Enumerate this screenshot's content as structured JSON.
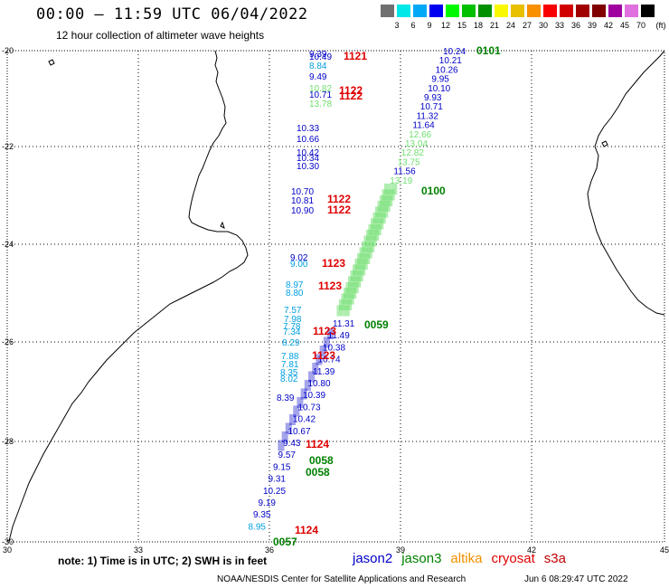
{
  "header": {
    "title": "00:00 — 11:59 UTC 06/04/2022",
    "subtitle": "12 hour collection of altimeter wave heights"
  },
  "legend": {
    "unit": "(ft)",
    "bins": [
      {
        "label": "",
        "color": "#707070"
      },
      {
        "label": "3",
        "color": "#00e8e8"
      },
      {
        "label": "6",
        "color": "#00a8f8"
      },
      {
        "label": "9",
        "color": "#0000f0"
      },
      {
        "label": "12",
        "color": "#00f800"
      },
      {
        "label": "15",
        "color": "#00c000"
      },
      {
        "label": "18",
        "color": "#009000"
      },
      {
        "label": "21",
        "color": "#f8f800"
      },
      {
        "label": "24",
        "color": "#e8c000"
      },
      {
        "label": "27",
        "color": "#f89000"
      },
      {
        "label": "30",
        "color": "#f80000"
      },
      {
        "label": "33",
        "color": "#d00000"
      },
      {
        "label": "36",
        "color": "#a00000"
      },
      {
        "label": "39",
        "color": "#800000"
      },
      {
        "label": "42",
        "color": "#a000a0"
      },
      {
        "label": "45",
        "color": "#e070e0"
      },
      {
        "label": "70",
        "color": "#000000"
      }
    ]
  },
  "axes": {
    "lon_ticks": [
      "30",
      "33",
      "36",
      "39",
      "42",
      "45"
    ],
    "lat_ticks": [
      "-20",
      "-22",
      "-24",
      "-26",
      "-28",
      "-30"
    ]
  },
  "colors": {
    "jason2": "#0000c8",
    "jason3": "#008000",
    "altika": "#f09000",
    "cryosat": "#e00000",
    "s3a": "#c00000",
    "light_green": "#70e070",
    "light_blue": "#00a0e0"
  },
  "observations": {
    "right_track": [
      {
        "v": "10.24",
        "c": "jason2"
      },
      {
        "v": "10.21",
        "c": "jason2"
      },
      {
        "v": "10.26",
        "c": "jason2"
      },
      {
        "v": "9.95",
        "c": "jason2"
      },
      {
        "v": "10.10",
        "c": "jason2"
      },
      {
        "v": "9.93",
        "c": "jason2"
      },
      {
        "v": "10.71",
        "c": "jason2"
      },
      {
        "v": "11.32",
        "c": "jason2"
      },
      {
        "v": "11.64",
        "c": "jason2"
      },
      {
        "v": "12.66",
        "c": "light_green"
      },
      {
        "v": "13.04",
        "c": "light_green"
      },
      {
        "v": "12.82",
        "c": "light_green"
      },
      {
        "v": "13.75",
        "c": "light_green"
      },
      {
        "v": "11.56",
        "c": "jason2"
      },
      {
        "v": "13.19",
        "c": "light_green"
      }
    ],
    "left_track_upper": [
      {
        "v": "9.39",
        "c": "jason2"
      },
      {
        "v": "10.49",
        "c": "jason2"
      },
      {
        "v": "8.84",
        "c": "light_blue"
      },
      {
        "v": "9.49",
        "c": "jason2"
      },
      {
        "v": "10.82",
        "c": "light_green"
      },
      {
        "v": "10.71",
        "c": "jason2"
      },
      {
        "v": "13.78",
        "c": "light_green"
      },
      {
        "v": "10.33",
        "c": "jason2"
      },
      {
        "v": "10.66",
        "c": "jason2"
      },
      {
        "v": "10.42",
        "c": "jason2"
      },
      {
        "v": "10.34",
        "c": "jason2"
      },
      {
        "v": "10.30",
        "c": "jason2"
      },
      {
        "v": "10.70",
        "c": "jason2"
      },
      {
        "v": "10.81",
        "c": "jason2"
      },
      {
        "v": "10.90",
        "c": "jason2"
      }
    ],
    "left_track_mid": [
      {
        "v": "9.02",
        "c": "jason2"
      },
      {
        "v": "9.00",
        "c": "light_blue"
      },
      {
        "v": "8.97",
        "c": "light_blue"
      },
      {
        "v": "8.80",
        "c": "light_blue"
      },
      {
        "v": "7.57",
        "c": "light_blue"
      },
      {
        "v": "7.98",
        "c": "light_blue"
      },
      {
        "v": "7.78",
        "c": "light_blue"
      },
      {
        "v": "7.34",
        "c": "light_blue"
      },
      {
        "v": "8.29",
        "c": "light_blue"
      },
      {
        "v": "7.88",
        "c": "light_blue"
      },
      {
        "v": "7.81",
        "c": "light_blue"
      },
      {
        "v": "8.35",
        "c": "light_blue"
      },
      {
        "v": "8.02",
        "c": "light_blue"
      },
      {
        "v": "8.39",
        "c": "jason2"
      }
    ],
    "lower_track": [
      {
        "v": "11.31",
        "c": "jason2"
      },
      {
        "v": "11.49",
        "c": "jason2"
      },
      {
        "v": "10.38",
        "c": "jason2"
      },
      {
        "v": "10.74",
        "c": "jason2"
      },
      {
        "v": "11.39",
        "c": "jason2"
      },
      {
        "v": "10.80",
        "c": "jason2"
      },
      {
        "v": "10.39",
        "c": "jason2"
      },
      {
        "v": "10.73",
        "c": "jason2"
      },
      {
        "v": "10.42",
        "c": "jason2"
      },
      {
        "v": "10.67",
        "c": "jason2"
      },
      {
        "v": "9.43",
        "c": "jason2"
      },
      {
        "v": "9.57",
        "c": "jason2"
      },
      {
        "v": "9.15",
        "c": "jason2"
      },
      {
        "v": "9.31",
        "c": "jason2"
      },
      {
        "v": "10.25",
        "c": "jason2"
      },
      {
        "v": "9.19",
        "c": "jason2"
      },
      {
        "v": "9.35",
        "c": "jason2"
      },
      {
        "v": "8.95",
        "c": "light_blue"
      }
    ],
    "pass_labels": [
      {
        "t": "0101",
        "c": "jason3"
      },
      {
        "t": "1121",
        "c": "cryosat"
      },
      {
        "t": "1122",
        "c": "cryosat"
      },
      {
        "t": "1122",
        "c": "cryosat"
      },
      {
        "t": "0100",
        "c": "jason3"
      },
      {
        "t": "1122",
        "c": "cryosat"
      },
      {
        "t": "1122",
        "c": "cryosat"
      },
      {
        "t": "1123",
        "c": "cryosat"
      },
      {
        "t": "1123",
        "c": "cryosat"
      },
      {
        "t": "0059",
        "c": "jason3"
      },
      {
        "t": "1123",
        "c": "cryosat"
      },
      {
        "t": "1123",
        "c": "cryosat"
      },
      {
        "t": "1124",
        "c": "cryosat"
      },
      {
        "t": "0058",
        "c": "jason3"
      },
      {
        "t": "0058",
        "c": "jason3"
      },
      {
        "t": "1124",
        "c": "cryosat"
      },
      {
        "t": "0057",
        "c": "jason3"
      }
    ]
  },
  "note": "note:  1) Time is in UTC;  2) SWH is in feet",
  "satellites": [
    {
      "name": "jason2",
      "c": "jason2"
    },
    {
      "name": "jason3",
      "c": "jason3"
    },
    {
      "name": "altika",
      "c": "altika"
    },
    {
      "name": "cryosat",
      "c": "cryosat"
    },
    {
      "name": "s3a",
      "c": "s3a"
    }
  ],
  "footer": {
    "credit": "NOAA/NESDIS Center for Satellite Applications and Research",
    "timestamp": "Jun  6 08:29:47 UTC 2022"
  }
}
